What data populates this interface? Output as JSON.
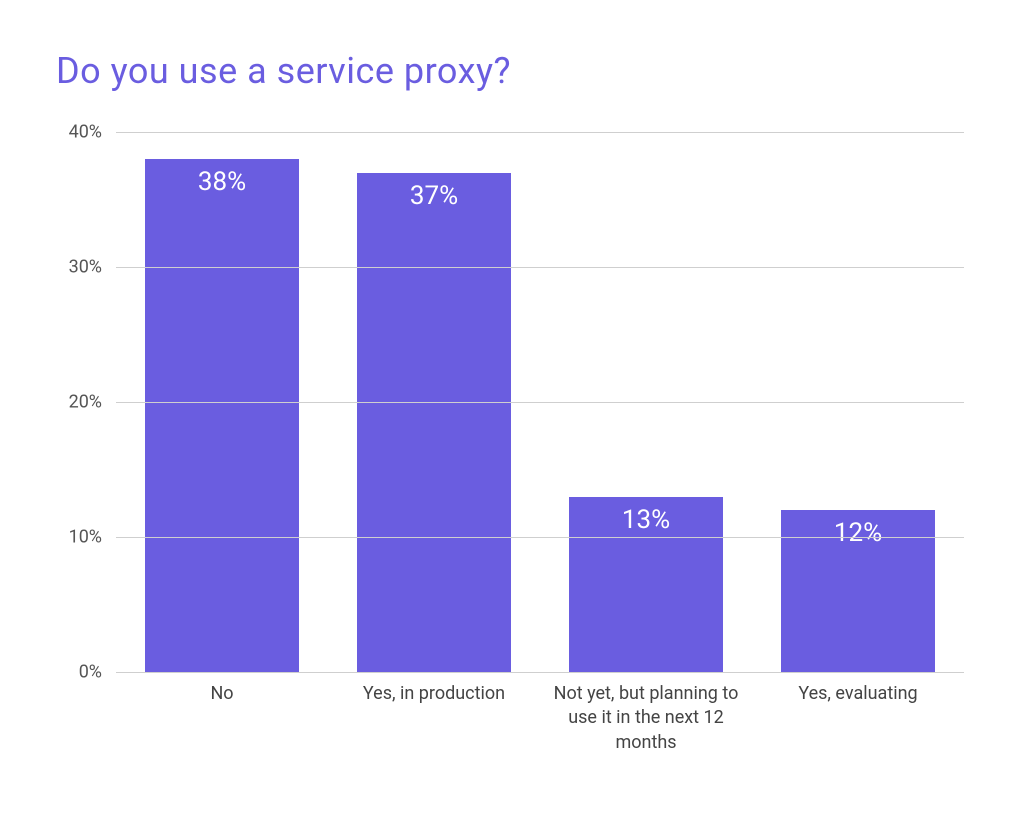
{
  "chart": {
    "type": "bar",
    "title": "Do you use a service proxy?",
    "title_color": "#6a5de0",
    "title_fontsize": 36,
    "background_color": "#ffffff",
    "grid_color": "#cfcfcf",
    "bar_color": "#6a5de0",
    "value_label_color": "#ffffff",
    "value_label_fontsize": 26,
    "axis_label_color": "#555555",
    "axis_label_fontsize": 18,
    "x_label_color": "#444444",
    "x_label_fontsize": 18,
    "y_min": 0,
    "y_max": 40,
    "y_tick_step": 10,
    "y_ticks": [
      {
        "value": 0,
        "label": "0%"
      },
      {
        "value": 10,
        "label": "10%"
      },
      {
        "value": 20,
        "label": "20%"
      },
      {
        "value": 30,
        "label": "30%"
      },
      {
        "value": 40,
        "label": "40%"
      }
    ],
    "bar_width_ratio": 0.73,
    "categories": [
      {
        "label": "No",
        "value": 38,
        "display": "38%"
      },
      {
        "label": "Yes, in production",
        "value": 37,
        "display": "37%"
      },
      {
        "label": "Not yet, but planning to use it in the next 12 months",
        "value": 13,
        "display": "13%"
      },
      {
        "label": "Yes, evaluating",
        "value": 12,
        "display": "12%"
      }
    ]
  }
}
